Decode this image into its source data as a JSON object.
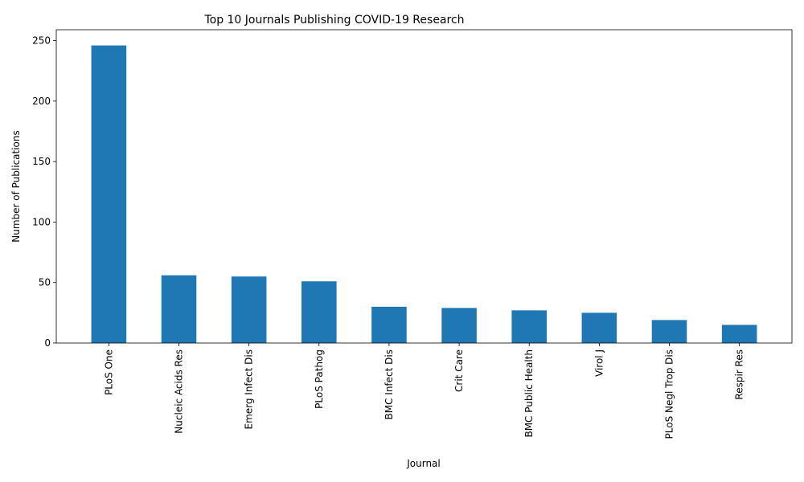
{
  "chart_data": {
    "type": "bar",
    "title": "Top 10 Journals Publishing COVID-19 Research",
    "xlabel": "Journal",
    "ylabel": "Number of Publications",
    "categories": [
      "PLoS One",
      "Nucleic Acids Res",
      "Emerg Infect Dis",
      "PLoS Pathog",
      "BMC Infect Dis",
      "Crit Care",
      "BMC Public Health",
      "Virol J",
      "PLoS Negl Trop Dis",
      "Respir Res"
    ],
    "values": [
      246,
      56,
      55,
      51,
      30,
      29,
      27,
      25,
      19,
      15
    ],
    "ylim": [
      0,
      259
    ],
    "yticks": [
      0,
      50,
      100,
      150,
      200,
      250
    ],
    "bar_color": "#1f77b4",
    "grid": false,
    "legend": false
  }
}
